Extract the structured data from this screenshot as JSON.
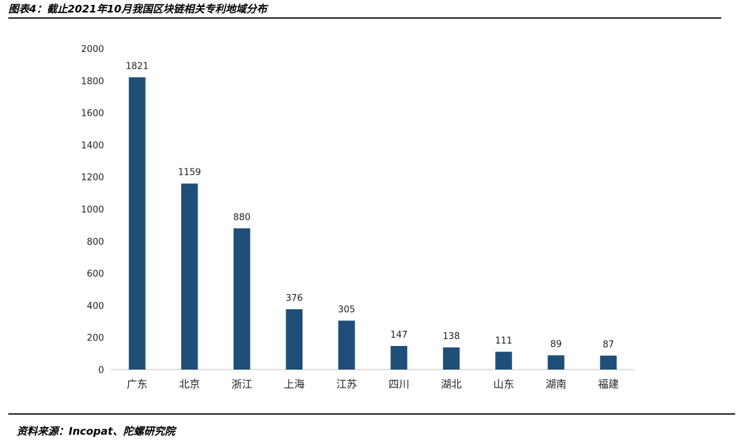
{
  "header": {
    "title": "图表4：截止2021年10月我国区块链相关专利地域分布"
  },
  "footer": {
    "source": "资料来源：Incopat、陀螺研究院"
  },
  "chart_data": {
    "type": "bar",
    "categories": [
      "广东",
      "北京",
      "浙江",
      "上海",
      "江苏",
      "四川",
      "湖北",
      "山东",
      "湖南",
      "福建"
    ],
    "values": [
      1821,
      1159,
      880,
      376,
      305,
      147,
      138,
      111,
      89,
      87
    ],
    "yticks": [
      0,
      200,
      400,
      600,
      800,
      1000,
      1200,
      1400,
      1600,
      1800,
      2000
    ],
    "ylim": [
      0,
      2000
    ],
    "grid": false,
    "legend": "none",
    "bar_color": "#1f4e79",
    "axis_color": "#bfbfbf"
  }
}
